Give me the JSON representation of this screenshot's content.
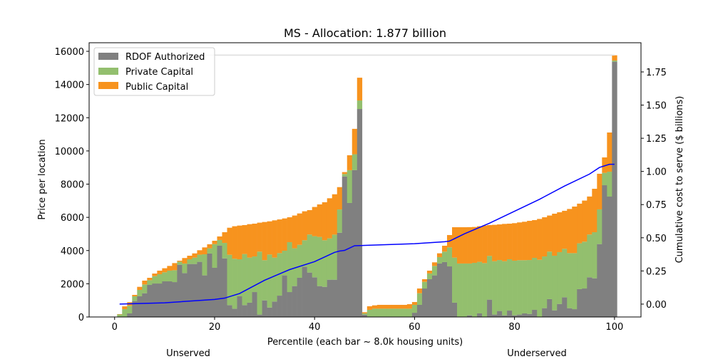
{
  "chart_data": {
    "type": "bar",
    "title": "MS - Allocation: 1.877 billion",
    "xlabel": "Percentile (each bar ~ 8.0k housing units)",
    "ylabel": "Price per location",
    "y2label": "Cumulative cost to serve ($ billions)",
    "xlim": [
      -5.1,
      105.3
    ],
    "ylim": [
      0,
      16516
    ],
    "y2lim": [
      -0.097,
      1.97
    ],
    "xticks": [
      0,
      20,
      40,
      60,
      80,
      100
    ],
    "yticks": [
      0,
      2000,
      4000,
      6000,
      8000,
      10000,
      12000,
      14000,
      16000
    ],
    "y2ticks": [
      "0.00",
      "0.25",
      "0.50",
      "0.75",
      "1.00",
      "1.25",
      "1.50",
      "1.75"
    ],
    "legend_placement": "top-left",
    "group_labels": [
      "Unserved",
      "Underserved"
    ],
    "allocation_line": 1.877,
    "colors": {
      "rdof": "#808080",
      "private": "#93bf6e",
      "public": "#f7931e",
      "cumulative": "#0000ff",
      "allocation": "#dddddd"
    },
    "series": [
      {
        "name": "RDOF Authorized",
        "key": "rdof",
        "values": [
          0,
          0,
          215,
          960,
          1245,
          1430,
          1930,
          2015,
          2015,
          2145,
          2145,
          2100,
          3145,
          2645,
          3190,
          3190,
          3320,
          2505,
          3820,
          2960,
          4290,
          3530,
          715,
          500,
          1245,
          715,
          860,
          1500,
          145,
          1000,
          570,
          930,
          1285,
          2505,
          1500,
          1860,
          2360,
          3030,
          2675,
          2390,
          1860,
          1815,
          2245,
          2245,
          5075,
          8465,
          6865,
          8840,
          12525,
          140,
          0,
          0,
          0,
          0,
          0,
          0,
          0,
          0,
          0,
          255,
          730,
          1715,
          2275,
          2505,
          3220,
          3305,
          3045,
          860,
          0,
          0,
          100,
          0,
          215,
          0,
          1045,
          145,
          360,
          100,
          385,
          100,
          145,
          215,
          185,
          430,
          0,
          530,
          1075,
          400,
          785,
          1185,
          530,
          470,
          1675,
          1715,
          2390,
          2330,
          4390,
          7935,
          7250,
          15375
        ]
      },
      {
        "name": "Private Capital",
        "key": "private",
        "values": [
          150,
          470,
          460,
          285,
          385,
          530,
          285,
          445,
          560,
          545,
          645,
          715,
          185,
          575,
          285,
          385,
          430,
          1270,
          315,
          1430,
          345,
          930,
          3030,
          3005,
          2230,
          3075,
          2715,
          2145,
          3790,
          2420,
          3190,
          2645,
          2560,
          1485,
          3005,
          2275,
          1985,
          1590,
          2290,
          2475,
          2960,
          2805,
          2490,
          2715,
          1400,
          145,
          1975,
          960,
          515,
          75,
          430,
          500,
          500,
          500,
          500,
          500,
          500,
          500,
          500,
          475,
          700,
          400,
          345,
          570,
          385,
          630,
          1145,
          2715,
          3220,
          3220,
          3120,
          3260,
          3105,
          3245,
          2630,
          3215,
          3070,
          3260,
          3090,
          3290,
          3275,
          3205,
          3245,
          3130,
          3445,
          3115,
          2860,
          3290,
          3120,
          2920,
          3315,
          3375,
          2760,
          2820,
          2575,
          2775,
          2090,
          745,
          1500,
          70
        ]
      },
      {
        "name": "Public Capital",
        "key": "public",
        "values": [
          20,
          170,
          215,
          85,
          185,
          230,
          145,
          155,
          215,
          245,
          285,
          430,
          60,
          330,
          215,
          255,
          270,
          415,
          245,
          200,
          215,
          645,
          1630,
          1960,
          2030,
          1745,
          2015,
          1975,
          1745,
          2300,
          2000,
          2245,
          2030,
          1945,
          1500,
          1975,
          1890,
          1745,
          1470,
          1760,
          1960,
          2290,
          2415,
          2430,
          1345,
          115,
          900,
          1530,
          1370,
          70,
          215,
          200,
          230,
          230,
          230,
          230,
          230,
          230,
          270,
          170,
          285,
          160,
          170,
          215,
          230,
          355,
          745,
          1830,
          2185,
          2185,
          2190,
          2160,
          2145,
          2260,
          1860,
          2190,
          2145,
          2245,
          2145,
          2260,
          2275,
          2315,
          2360,
          2275,
          2460,
          2360,
          2175,
          2530,
          2400,
          2290,
          2660,
          2805,
          2390,
          2475,
          2290,
          2615,
          2145,
          930,
          2360,
          315
        ]
      }
    ],
    "cumulative": {
      "name": "Cumulative cost",
      "x": [
        1,
        10,
        20,
        22,
        25,
        30,
        35,
        40,
        44,
        45,
        46,
        48,
        60,
        66,
        67,
        70,
        75,
        80,
        85,
        90,
        95,
        97,
        99,
        100
      ],
      "y": [
        0.0,
        0.01,
        0.035,
        0.045,
        0.08,
        0.18,
        0.26,
        0.32,
        0.39,
        0.4,
        0.405,
        0.44,
        0.455,
        0.47,
        0.475,
        0.53,
        0.61,
        0.7,
        0.79,
        0.89,
        0.98,
        1.03,
        1.054,
        1.054
      ]
    }
  }
}
